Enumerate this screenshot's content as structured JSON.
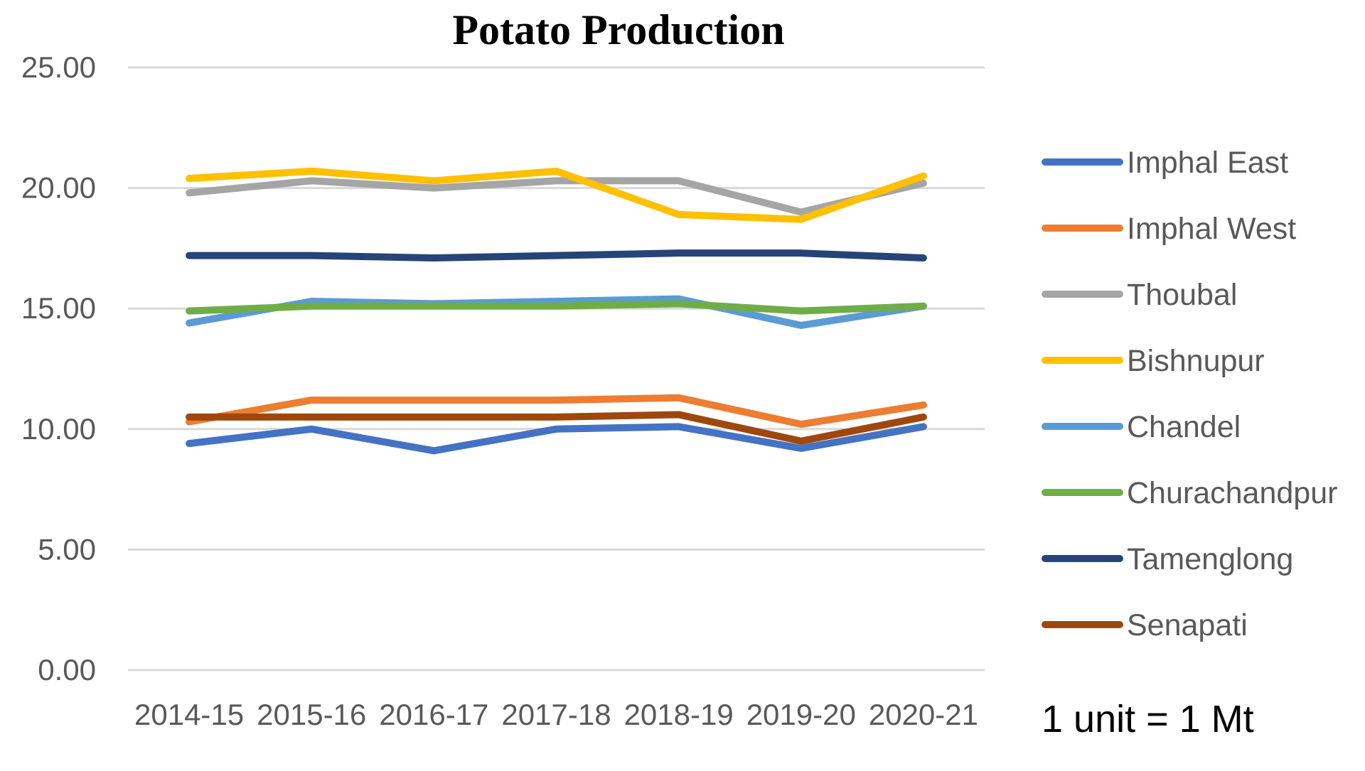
{
  "chart_data": {
    "type": "line",
    "title": "Potato Production",
    "xlabel": "",
    "ylabel": "",
    "categories": [
      "2014-15",
      "2015-16",
      "2016-17",
      "2017-18",
      "2018-19",
      "2019-20",
      "2020-21"
    ],
    "y_ticks": [
      "0.00",
      "5.00",
      "10.00",
      "15.00",
      "20.00",
      "25.00"
    ],
    "ylim": [
      0,
      25
    ],
    "grid": "horizontal",
    "legend_position": "right",
    "series": [
      {
        "name": "Imphal East",
        "color": "#4472C4",
        "values": [
          9.4,
          10.0,
          9.1,
          10.0,
          10.1,
          9.2,
          10.1
        ]
      },
      {
        "name": "Imphal West",
        "color": "#ED7D31",
        "values": [
          10.3,
          11.2,
          11.2,
          11.2,
          11.3,
          10.2,
          11.0
        ]
      },
      {
        "name": "Thoubal",
        "color": "#A5A5A5",
        "values": [
          19.8,
          20.3,
          20.0,
          20.3,
          20.3,
          19.0,
          20.2
        ]
      },
      {
        "name": "Bishnupur",
        "color": "#FFC000",
        "values": [
          20.4,
          20.7,
          20.3,
          20.7,
          18.9,
          18.7,
          20.5
        ]
      },
      {
        "name": "Chandel",
        "color": "#5B9BD5",
        "values": [
          14.4,
          15.3,
          15.2,
          15.3,
          15.4,
          14.3,
          15.1
        ]
      },
      {
        "name": "Churachandpur",
        "color": "#70AD47",
        "values": [
          14.9,
          15.1,
          15.1,
          15.1,
          15.2,
          14.9,
          15.1
        ]
      },
      {
        "name": "Tamenglong",
        "color": "#264478",
        "values": [
          17.2,
          17.2,
          17.1,
          17.2,
          17.3,
          17.3,
          17.1
        ]
      },
      {
        "name": "Senapati",
        "color": "#9E480E",
        "values": [
          10.5,
          10.5,
          10.5,
          10.5,
          10.6,
          9.5,
          10.5
        ]
      }
    ],
    "annotation": "1 unit = 1 Mt"
  }
}
